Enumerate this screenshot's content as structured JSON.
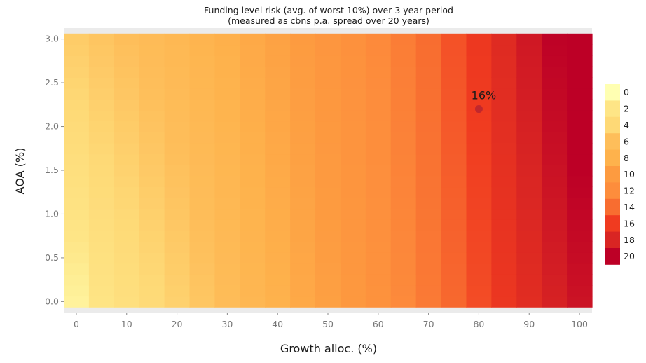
{
  "chart_data": {
    "type": "heatmap",
    "title": "Funding level risk (avg. of worst 10%) over 3 year period",
    "subtitle": "(measured as cbns p.a. spread over 20 years)",
    "xlabel": "Growth alloc. (%)",
    "ylabel": "AOA (%)",
    "x_ticks": [
      "0",
      "10",
      "20",
      "30",
      "40",
      "50",
      "60",
      "70",
      "80",
      "90",
      "100"
    ],
    "y_ticks": [
      "0.0",
      "0.5",
      "1.0",
      "1.5",
      "2.0",
      "2.5",
      "3.0"
    ],
    "xlim": [
      -2.5,
      102.5
    ],
    "ylim": [
      -0.125,
      3.125
    ],
    "x_values": [
      0,
      5,
      10,
      15,
      20,
      25,
      30,
      35,
      40,
      45,
      50,
      55,
      60,
      65,
      70,
      75,
      80,
      85,
      90,
      95,
      100
    ],
    "y_values": [
      0.0,
      0.125,
      0.25,
      0.375,
      0.5,
      0.625,
      0.75,
      0.875,
      1.0,
      1.125,
      1.25,
      1.375,
      1.5,
      1.625,
      1.75,
      1.875,
      2.0,
      2.125,
      2.25,
      2.375,
      2.5,
      2.625,
      2.75,
      2.875,
      3.0
    ],
    "values_at_aoa_0": [
      1.0,
      2.2,
      3.0,
      3.8,
      4.6,
      5.4,
      6.3,
      7.2,
      8.0,
      8.8,
      9.6,
      10.4,
      11.3,
      12.2,
      13.2,
      14.2,
      15.3,
      16.4,
      17.3,
      18.2,
      19.0
    ],
    "values_at_aoa_3": [
      5.0,
      5.5,
      6.0,
      6.5,
      7.0,
      7.6,
      8.2,
      8.8,
      9.4,
      10.0,
      10.7,
      11.4,
      12.2,
      13.0,
      14.0,
      15.1,
      16.3,
      17.5,
      18.7,
      19.9,
      21.0
    ],
    "colorbar": {
      "labels": [
        "0",
        "2",
        "4",
        "6",
        "8",
        "10",
        "12",
        "14",
        "16",
        "18",
        "20"
      ],
      "colors": [
        "#ffffb2",
        "#fee586",
        "#fed976",
        "#febe5a",
        "#feb24c",
        "#fd9b40",
        "#fd8d3c",
        "#f86d30",
        "#f03b20",
        "#d92523",
        "#bd0026"
      ]
    },
    "annotations": [
      {
        "x": 80,
        "y": 2.2,
        "label": "16%",
        "color": "#c1272d"
      }
    ],
    "background": "#ebebeb",
    "grid": false,
    "legend_position": "right"
  }
}
